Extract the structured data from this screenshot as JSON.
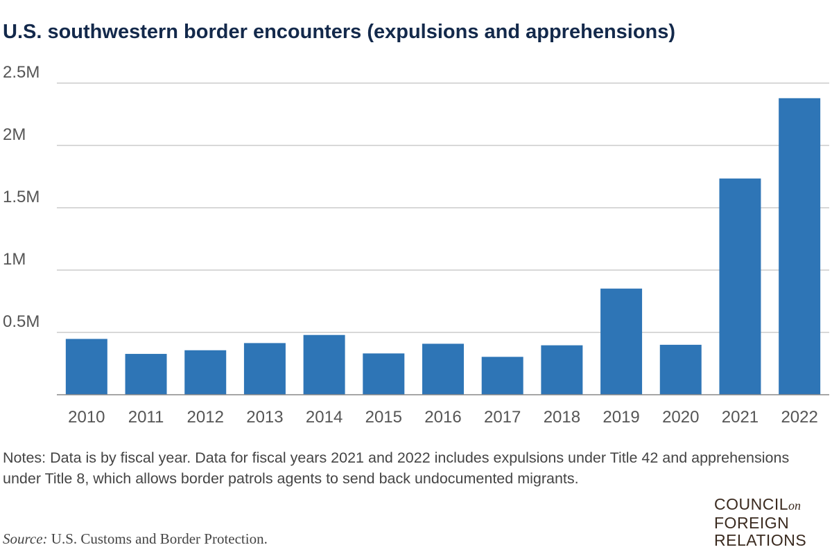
{
  "title": "U.S. southwestern border encounters (expulsions and apprehensions)",
  "notes": "Notes: Data is by fiscal year. Data for fiscal years 2021 and 2022 includes expulsions under Title 42 and apprehensions under Title 8, which allows border patrols agents to send back undocumented migrants.",
  "source": {
    "label": "Source:",
    "text": "U.S. Customs and Border Protection."
  },
  "logo": {
    "line1": "COUNCIL",
    "on": "on",
    "line2": "FOREIGN",
    "line3": "RELATIONS"
  },
  "colors": {
    "bar": "#2e75b6",
    "title": "#13294b",
    "grid": "#cccccc",
    "text": "#555555"
  },
  "chart_data": {
    "type": "bar",
    "title": "U.S. southwestern border encounters (expulsions and apprehensions)",
    "xlabel": "",
    "ylabel": "",
    "categories": [
      "2010",
      "2011",
      "2012",
      "2013",
      "2014",
      "2015",
      "2016",
      "2017",
      "2018",
      "2019",
      "2020",
      "2021",
      "2022"
    ],
    "values": [
      447731,
      327577,
      356873,
      414397,
      479371,
      331333,
      408870,
      303916,
      396579,
      851508,
      400651,
      1734686,
      2378944
    ],
    "ylim": [
      0,
      2500000
    ],
    "yticks": [
      0.5,
      1,
      1.5,
      2,
      2.5
    ],
    "ytick_values": [
      500000,
      1000000,
      1500000,
      2000000,
      2500000
    ],
    "ytick_labels": [
      "0.5M",
      "1M",
      "1.5M",
      "2M",
      "2.5M"
    ],
    "grid": true,
    "legend": "none"
  }
}
